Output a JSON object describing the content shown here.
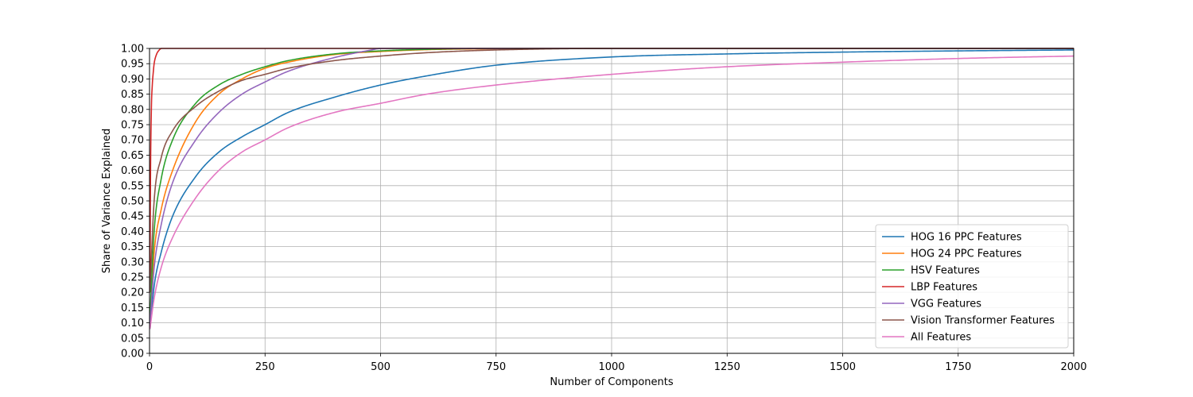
{
  "chart_data": {
    "type": "line",
    "title": "",
    "xlabel": "Number of Components",
    "ylabel": "Share of Variance Explained",
    "xlim": [
      0,
      2000
    ],
    "ylim": [
      0,
      1.0
    ],
    "xticks": [
      "0",
      "250",
      "500",
      "750",
      "1000",
      "1250",
      "1500",
      "1750",
      "2000"
    ],
    "yticks": [
      "0.00",
      "0.05",
      "0.10",
      "0.15",
      "0.20",
      "0.25",
      "0.30",
      "0.35",
      "0.40",
      "0.45",
      "0.50",
      "0.55",
      "0.60",
      "0.65",
      "0.70",
      "0.75",
      "0.80",
      "0.85",
      "0.90",
      "0.95",
      "1.00"
    ],
    "grid": true,
    "legend_position": "bottom-right",
    "series": [
      {
        "name": "HOG 16 PPC Features",
        "color": "#1f77b4",
        "x": [
          1,
          10,
          25,
          50,
          100,
          150,
          200,
          250,
          300,
          400,
          500,
          600,
          750,
          1000,
          1250,
          1500,
          1750,
          2000
        ],
        "y": [
          0.08,
          0.22,
          0.33,
          0.45,
          0.58,
          0.66,
          0.71,
          0.75,
          0.79,
          0.84,
          0.88,
          0.91,
          0.945,
          0.972,
          0.982,
          0.988,
          0.992,
          0.995
        ]
      },
      {
        "name": "HOG 24 PPC Features",
        "color": "#ff7f0e",
        "x": [
          1,
          10,
          25,
          50,
          100,
          150,
          200,
          250,
          300,
          400,
          500,
          600,
          750,
          1000,
          2000
        ],
        "y": [
          0.1,
          0.33,
          0.47,
          0.6,
          0.76,
          0.85,
          0.9,
          0.935,
          0.955,
          0.98,
          0.99,
          0.996,
          0.999,
          1.0,
          1.0
        ]
      },
      {
        "name": "HSV Features",
        "color": "#2ca02c",
        "x": [
          1,
          10,
          25,
          50,
          100,
          150,
          200,
          250,
          300,
          400,
          500,
          600,
          750,
          2000
        ],
        "y": [
          0.12,
          0.4,
          0.57,
          0.7,
          0.82,
          0.88,
          0.915,
          0.94,
          0.96,
          0.982,
          0.992,
          0.997,
          1.0,
          1.0
        ]
      },
      {
        "name": "LBP Features",
        "color": "#d62728",
        "x": [
          1,
          2,
          4,
          6,
          8,
          10,
          15,
          20,
          26,
          30,
          2000
        ],
        "y": [
          0.2,
          0.55,
          0.8,
          0.88,
          0.92,
          0.95,
          0.98,
          0.993,
          1.0,
          1.0,
          1.0
        ]
      },
      {
        "name": "VGG Features",
        "color": "#9467bd",
        "x": [
          1,
          10,
          25,
          50,
          100,
          150,
          200,
          250,
          300,
          400,
          480,
          500,
          2000
        ],
        "y": [
          0.1,
          0.28,
          0.42,
          0.56,
          0.7,
          0.79,
          0.85,
          0.89,
          0.925,
          0.97,
          0.995,
          1.0,
          1.0
        ]
      },
      {
        "name": "Vision Transformer Features",
        "color": "#8c564b",
        "x": [
          1,
          10,
          25,
          50,
          100,
          150,
          200,
          250,
          300,
          400,
          500,
          600,
          750,
          1000,
          2000
        ],
        "y": [
          0.2,
          0.5,
          0.64,
          0.73,
          0.81,
          0.86,
          0.895,
          0.915,
          0.935,
          0.96,
          0.975,
          0.986,
          0.995,
          1.0,
          1.0
        ]
      },
      {
        "name": "All Features",
        "color": "#e377c2",
        "x": [
          1,
          10,
          25,
          50,
          100,
          150,
          200,
          250,
          300,
          400,
          500,
          600,
          750,
          1000,
          1250,
          1500,
          1750,
          2000
        ],
        "y": [
          0.08,
          0.18,
          0.28,
          0.38,
          0.51,
          0.6,
          0.66,
          0.7,
          0.74,
          0.79,
          0.82,
          0.85,
          0.88,
          0.915,
          0.94,
          0.955,
          0.967,
          0.975
        ]
      }
    ]
  }
}
